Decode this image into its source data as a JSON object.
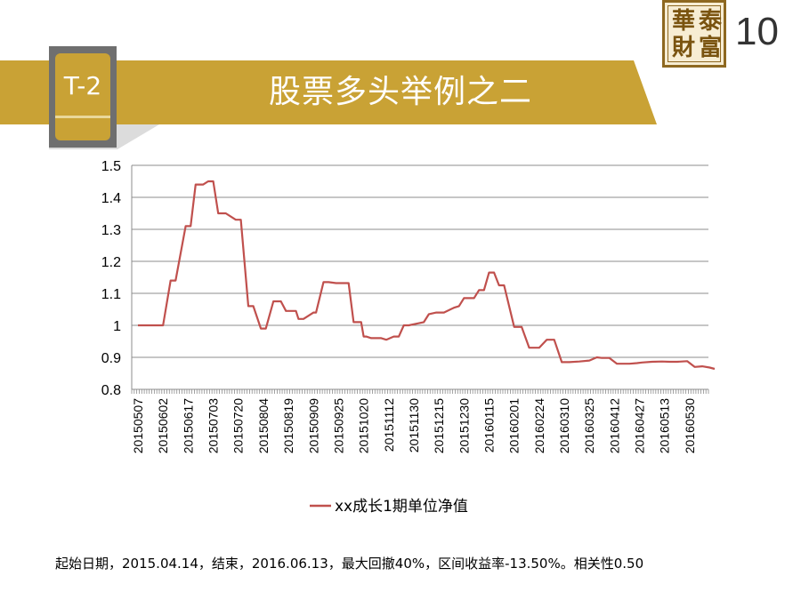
{
  "header": {
    "tab_label": "T-2",
    "title": "股票多头举例之二",
    "page_number": "10",
    "logo_chars": [
      "華",
      "泰",
      "財",
      "富"
    ]
  },
  "colors": {
    "accent": "#c9a235",
    "tab_gray": "#6f6f6f",
    "series": "#c0504d"
  },
  "chart_data": {
    "type": "line",
    "x_ticks": [
      "20150507",
      "20150602",
      "20150617",
      "20150703",
      "20150720",
      "20150804",
      "20150819",
      "20150909",
      "20150925",
      "20151020",
      "20151112",
      "20151130",
      "20151215",
      "20151230",
      "20160115",
      "20160201",
      "20160224",
      "20160310",
      "20160325",
      "20160412",
      "20160427",
      "20160513",
      "20160530"
    ],
    "y_ticks": [
      "1.5",
      "1.4",
      "1.3",
      "1.2",
      "1.1",
      "1",
      "0.9",
      "0.8"
    ],
    "ylim": [
      0.8,
      1.5
    ],
    "grid": true,
    "legend_position": "bottom",
    "series": [
      {
        "name": "xx成长1期单位净值",
        "color": "#c0504d",
        "x": [
          0,
          1,
          1.3,
          1.5,
          1.9,
          2.1,
          2.3,
          2.6,
          2.8,
          3.0,
          3.2,
          3.5,
          3.9,
          4.1,
          4.4,
          4.6,
          4.9,
          5.1,
          5.4,
          5.7,
          5.9,
          6.1,
          6.3,
          6.4,
          6.6,
          7.0,
          7.1,
          7.4,
          7.6,
          7.9,
          8.0,
          8.2,
          8.4,
          8.6,
          8.9,
          9.0,
          9.1,
          9.3,
          9.4,
          9.7,
          9.9,
          10.2,
          10.4,
          10.6,
          10.8,
          11.1,
          11.4,
          11.6,
          11.9,
          12.2,
          12.6,
          12.8,
          13.0,
          13.4,
          13.6,
          13.8,
          14.0,
          14.2,
          14.4,
          14.6,
          15.0,
          15.3,
          15.6,
          16.0,
          16.3,
          16.6,
          16.9,
          17.2,
          17.6,
          18.0,
          18.3,
          18.5,
          18.8,
          19.1,
          19.4,
          19.6,
          19.9,
          20.1,
          20.5,
          20.9,
          21.2,
          21.5,
          21.9,
          22.2,
          22.5,
          22.8,
          23.0
        ],
        "values": [
          1.0,
          1.0,
          1.14,
          1.14,
          1.31,
          1.31,
          1.44,
          1.44,
          1.45,
          1.45,
          1.35,
          1.35,
          1.33,
          1.33,
          1.06,
          1.06,
          0.99,
          0.99,
          1.075,
          1.075,
          1.045,
          1.045,
          1.045,
          1.02,
          1.02,
          1.04,
          1.04,
          1.135,
          1.135,
          1.132,
          1.132,
          1.132,
          1.132,
          1.01,
          1.01,
          0.965,
          0.965,
          0.96,
          0.96,
          0.96,
          0.955,
          0.965,
          0.965,
          1.0,
          1.0,
          1.005,
          1.01,
          1.035,
          1.04,
          1.04,
          1.055,
          1.06,
          1.085,
          1.085,
          1.11,
          1.11,
          1.165,
          1.165,
          1.125,
          1.125,
          0.995,
          0.995,
          0.93,
          0.93,
          0.955,
          0.955,
          0.885,
          0.885,
          0.887,
          0.89,
          0.9,
          0.898,
          0.898,
          0.88,
          0.88,
          0.88,
          0.882,
          0.884,
          0.886,
          0.887,
          0.886,
          0.886,
          0.888,
          0.87,
          0.872,
          0.868,
          0.864
        ]
      }
    ]
  },
  "footnote": "起始日期，2015.04.14，结束，2016.06.13，最大回撤40%，区间收益率-13.50%。相关性0.50"
}
